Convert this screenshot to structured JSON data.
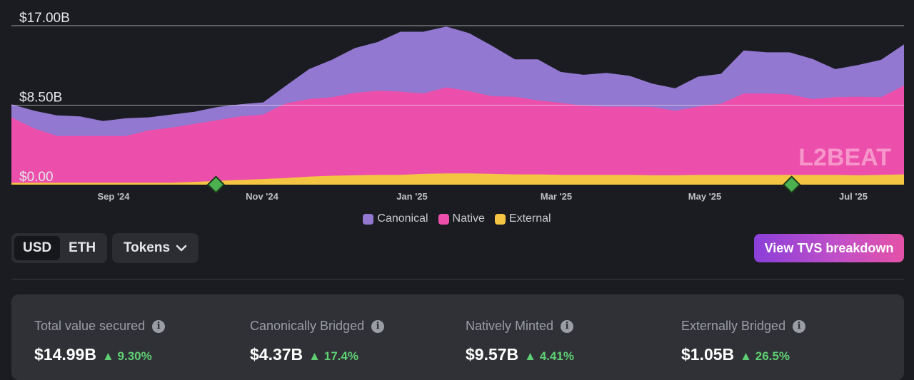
{
  "chart_data": {
    "type": "area",
    "stacked": true,
    "x_ticks": [
      "Sep '24",
      "Nov '24",
      "Jan '25",
      "Mar '25",
      "May '25",
      "Jul '25"
    ],
    "y_ticks": [
      "$17.00B",
      "$8.50B",
      "$0.00"
    ],
    "ylim": [
      0,
      17
    ],
    "n_points": 40,
    "series": [
      {
        "name": "External",
        "color": "#f4c542",
        "values": [
          0.2,
          0.2,
          0.2,
          0.2,
          0.2,
          0.2,
          0.2,
          0.2,
          0.3,
          0.4,
          0.5,
          0.6,
          0.7,
          0.85,
          0.95,
          1.0,
          1.05,
          1.05,
          1.15,
          1.2,
          1.2,
          1.15,
          1.1,
          1.1,
          1.05,
          1.05,
          1.05,
          1.05,
          1.0,
          1.0,
          1.05,
          1.05,
          1.05,
          1.05,
          1.05,
          1.05,
          1.05,
          1.0,
          1.05,
          1.1
        ]
      },
      {
        "name": "Native",
        "color": "#ec4fab",
        "values": [
          7.0,
          5.8,
          5.0,
          5.0,
          5.0,
          5.0,
          5.6,
          5.9,
          6.2,
          6.5,
          6.8,
          6.9,
          8.0,
          8.3,
          8.4,
          8.8,
          9.0,
          8.9,
          8.6,
          9.2,
          8.8,
          8.3,
          8.3,
          7.9,
          7.7,
          7.4,
          7.3,
          7.3,
          7.3,
          6.9,
          7.3,
          7.6,
          8.7,
          8.7,
          8.6,
          8.1,
          8.3,
          8.4,
          8.3,
          9.5
        ]
      },
      {
        "name": "Canonical",
        "color": "#9278d1",
        "values": [
          1.4,
          1.9,
          2.2,
          2.1,
          1.6,
          1.9,
          1.4,
          1.4,
          1.3,
          1.4,
          1.3,
          1.3,
          1.9,
          3.2,
          4.0,
          4.8,
          5.2,
          6.4,
          6.6,
          6.5,
          6.2,
          5.4,
          4.0,
          4.4,
          3.3,
          3.3,
          3.6,
          3.3,
          2.5,
          2.4,
          3.2,
          3.2,
          4.6,
          4.4,
          4.5,
          4.3,
          3.0,
          3.4,
          4.0,
          4.4
        ]
      }
    ],
    "markers": [
      {
        "x_index": 8
      },
      {
        "x_index": 33
      }
    ],
    "legend": [
      "Canonical",
      "Native",
      "External"
    ],
    "legend_position": "bottom-center",
    "grid": true
  },
  "watermark": "L2BEAT",
  "controls": {
    "currency_toggle": [
      "USD",
      "ETH"
    ],
    "currency_active": "USD",
    "tokens_label": "Tokens",
    "breakdown_button": "View TVS breakdown"
  },
  "stats": [
    {
      "label": "Total value secured",
      "value": "$14.99B",
      "change": "9.30%"
    },
    {
      "label": "Canonically Bridged",
      "value": "$4.37B",
      "change": "17.4%"
    },
    {
      "label": "Natively Minted",
      "value": "$9.57B",
      "change": "4.41%"
    },
    {
      "label": "Externally Bridged",
      "value": "$1.05B",
      "change": "26.5%"
    }
  ],
  "icons": {
    "info": "info-circle-icon",
    "chevron": "chevron-down-icon",
    "trend": "arrow-up-icon"
  }
}
